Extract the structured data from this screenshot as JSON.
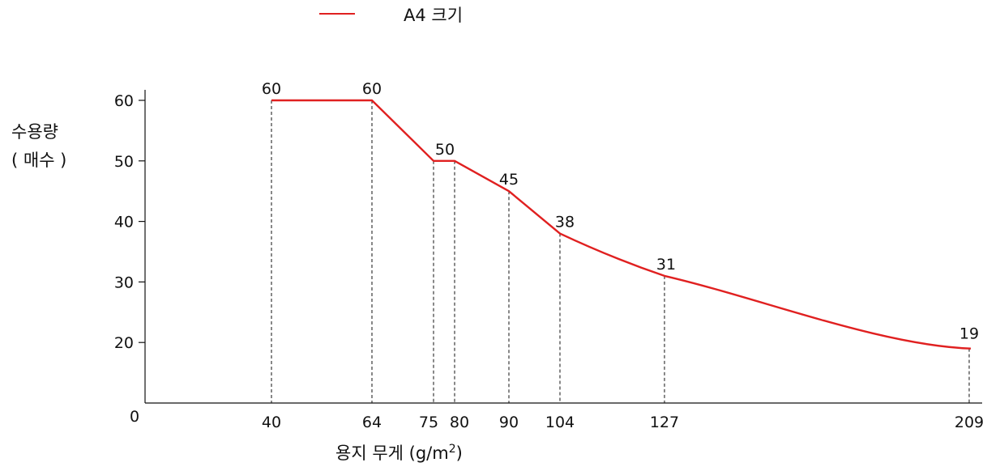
{
  "chart_data": {
    "type": "line",
    "legend": "A4 크기",
    "color": "#e02020",
    "x": [
      40,
      64,
      75,
      80,
      90,
      104,
      127,
      209
    ],
    "x_tick_labels": [
      "40",
      "64",
      "75",
      "80",
      "90",
      "104",
      "127",
      "209"
    ],
    "y": [
      60,
      60,
      50,
      50,
      45,
      38,
      31,
      19
    ],
    "point_labels": [
      "60",
      "60",
      "",
      "50",
      "45",
      "38",
      "31",
      "19"
    ],
    "y_ticks": [
      20,
      30,
      40,
      50,
      60
    ],
    "y_tick_labels": [
      "20",
      "30",
      "40",
      "50",
      "60"
    ],
    "origin_label": "0",
    "ylabel_line1": "수용량",
    "ylabel_line2": "( 매수 )",
    "xlabel_text": "용지 무게 (g/m",
    "xlabel_sup": "2",
    "xlabel_close": ")"
  }
}
